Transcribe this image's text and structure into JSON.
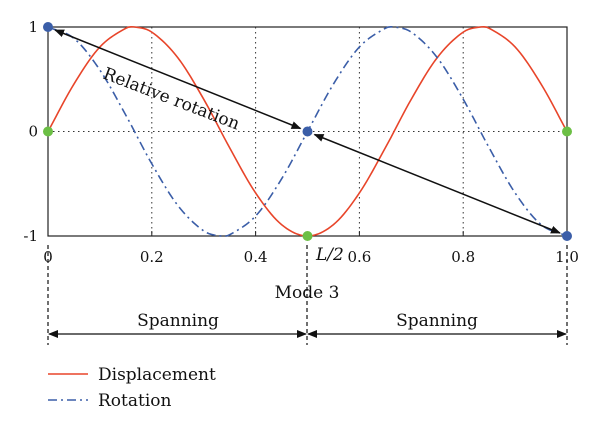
{
  "chart_data": {
    "type": "line",
    "title": "",
    "xlabel": "Mode 3",
    "ylabel": "",
    "xlim": [
      0,
      1
    ],
    "ylim": [
      -1,
      1
    ],
    "x_ticks": [
      "0",
      "0.2",
      "0.4",
      "0.6",
      "0.8",
      "1.0"
    ],
    "x_tick_values": [
      0,
      0.2,
      0.4,
      0.6,
      0.8,
      1.0
    ],
    "y_ticks": [
      "1",
      "0",
      "-1"
    ],
    "y_tick_values": [
      1,
      0,
      -1
    ],
    "grid": "dotted",
    "series": [
      {
        "name": "Displacement",
        "color": "#e8452a",
        "style": "solid",
        "x": [
          0,
          0.05,
          0.1,
          0.15,
          0.1667,
          0.2,
          0.25,
          0.3,
          0.35,
          0.4,
          0.45,
          0.5,
          0.55,
          0.6,
          0.65,
          0.7,
          0.75,
          0.8,
          0.8333,
          0.85,
          0.9,
          0.95,
          1.0
        ],
        "y": [
          0,
          0.454,
          0.809,
          0.988,
          1.0,
          0.951,
          0.707,
          0.309,
          -0.156,
          -0.588,
          -0.891,
          -1.0,
          -0.891,
          -0.588,
          -0.156,
          0.309,
          0.707,
          0.951,
          1.0,
          0.988,
          0.809,
          0.454,
          0
        ]
      },
      {
        "name": "Rotation",
        "color": "#3b5ea8",
        "style": "dash-dot",
        "x": [
          0,
          0.05,
          0.1,
          0.15,
          0.2,
          0.25,
          0.3,
          0.3333,
          0.35,
          0.4,
          0.45,
          0.5,
          0.55,
          0.6,
          0.65,
          0.6667,
          0.7,
          0.75,
          0.8,
          0.85,
          0.9,
          0.95,
          1.0
        ],
        "y": [
          1.0,
          0.891,
          0.588,
          0.156,
          -0.309,
          -0.707,
          -0.951,
          -1.0,
          -0.988,
          -0.809,
          -0.454,
          0,
          0.454,
          0.809,
          0.988,
          1.0,
          0.951,
          0.707,
          0.309,
          -0.156,
          -0.588,
          -0.891,
          -1.0
        ]
      }
    ],
    "markers": [
      {
        "x": 0,
        "y": 1,
        "color": "#3b5ea8"
      },
      {
        "x": 0,
        "y": 0,
        "color": "#6cbf45"
      },
      {
        "x": 0.5,
        "y": 0,
        "color": "#3b5ea8"
      },
      {
        "x": 0.5,
        "y": -1,
        "color": "#6cbf45"
      },
      {
        "x": 1.0,
        "y": 0,
        "color": "#6cbf45"
      },
      {
        "x": 1.0,
        "y": -1,
        "color": "#3b5ea8"
      }
    ],
    "annotations": {
      "relative_rotation": "Relative rotation",
      "half_length": "L/2",
      "spans": [
        "Spanning",
        "Spanning"
      ]
    },
    "legend": {
      "placement": "bottom-left",
      "entries": [
        "Displacement",
        "Rotation"
      ]
    }
  }
}
